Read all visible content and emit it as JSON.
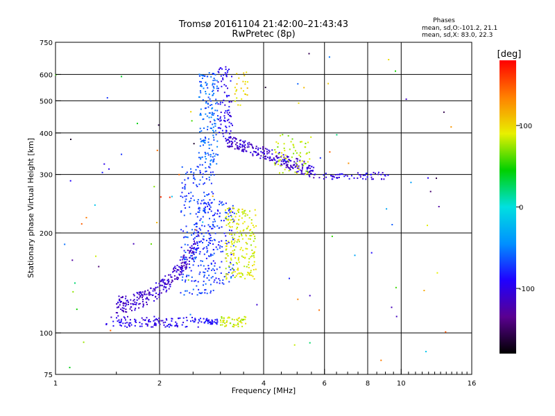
{
  "chart_data": {
    "type": "scatter",
    "title": "Tromsø 20161104 21:42:00–21:43:43",
    "subtitle": "RwPretec (8p)",
    "xlabel": "Frequency [MHz]",
    "ylabel": "Stationary phase Virtual Height [km]",
    "x_scale": "log",
    "y_scale": "log",
    "xlim": [
      1,
      16
    ],
    "ylim": [
      75,
      750
    ],
    "x_ticks": [
      1,
      2,
      4,
      6,
      8,
      10,
      16
    ],
    "x_tick_labels": [
      "1",
      "2",
      "4",
      "6",
      "8",
      "10",
      "16"
    ],
    "x_grid": [
      2,
      4,
      6,
      8,
      10
    ],
    "y_ticks": [
      75,
      100,
      200,
      300,
      400,
      500,
      600,
      750
    ],
    "y_tick_labels": [
      "75",
      "100",
      "200",
      "300",
      "400",
      "500",
      "600",
      "750"
    ],
    "y_grid": [
      100,
      200,
      300,
      400,
      500,
      600
    ],
    "grid": true,
    "stats": {
      "heading": "Phases",
      "line1": "mean, sd,O:-101.2, 21.1",
      "line2": "mean, sd,X: 83.0, 22.3"
    },
    "colorbar": {
      "label": "[deg]",
      "min": -180,
      "max": 180,
      "ticks": [
        100,
        0,
        -100
      ],
      "tick_labels": [
        "100",
        "0",
        "-100"
      ],
      "stops": [
        "#000000",
        "#5a0090",
        "#2000ff",
        "#0090ff",
        "#00e0e0",
        "#00d000",
        "#e8f000",
        "#ff8000",
        "#ff0000"
      ]
    },
    "clusters": [
      {
        "name": "o_low_100",
        "color_deg": -100,
        "n": 80,
        "f": [
          1.4,
          2.1
        ],
        "h": [
          104,
          112
        ]
      },
      {
        "name": "o_low_100b",
        "color_deg": -90,
        "n": 50,
        "f": [
          2.1,
          2.75
        ],
        "h": [
          104,
          112
        ]
      },
      {
        "name": "o_low_100c",
        "color_deg": -90,
        "n": 25,
        "f": [
          2.75,
          2.95
        ],
        "h": [
          106,
          110
        ]
      },
      {
        "name": "o_f1_trace",
        "color_deg": -110,
        "n": 260,
        "f": [
          1.5,
          2.6
        ],
        "h": [
          122,
          190
        ],
        "kind": "f1"
      },
      {
        "name": "o_f_rise",
        "color_deg": -70,
        "n": 230,
        "f": [
          2.3,
          2.9
        ],
        "h": [
          130,
          320
        ]
      },
      {
        "name": "o_f_high",
        "color_deg": -60,
        "n": 170,
        "f": [
          2.6,
          2.95
        ],
        "h": [
          320,
          610
        ]
      },
      {
        "name": "o_f_mid",
        "color_deg": -75,
        "n": 170,
        "f": [
          2.5,
          3.3
        ],
        "h": [
          140,
          250
        ]
      },
      {
        "name": "o_f_cusp",
        "color_deg": -95,
        "n": 90,
        "f": [
          2.95,
          3.25
        ],
        "h": [
          380,
          640
        ]
      },
      {
        "name": "o_f2_shelf",
        "color_deg": -110,
        "n": 240,
        "f": [
          3.1,
          5.6
        ],
        "h": [
          290,
          390
        ],
        "kind": "f2"
      },
      {
        "name": "o_f2_tail",
        "color_deg": -100,
        "n": 60,
        "f": [
          5.6,
          9.2
        ],
        "h": [
          290,
          305
        ]
      },
      {
        "name": "x_low_100",
        "color_deg": 85,
        "n": 50,
        "f": [
          3.0,
          3.55
        ],
        "h": [
          104,
          112
        ]
      },
      {
        "name": "x_f_band",
        "color_deg": 88,
        "n": 200,
        "f": [
          3.1,
          3.8
        ],
        "h": [
          145,
          240
        ]
      },
      {
        "name": "x_f2",
        "color_deg": 80,
        "n": 70,
        "f": [
          4.3,
          5.5
        ],
        "h": [
          300,
          400
        ]
      },
      {
        "name": "x_cusp",
        "color_deg": 100,
        "n": 25,
        "f": [
          3.3,
          3.6
        ],
        "h": [
          480,
          620
        ]
      },
      {
        "name": "scatter_noise",
        "color_deg": 0,
        "n": 90,
        "f": [
          1.0,
          14.0
        ],
        "h": [
          78,
          700
        ],
        "kind": "noise"
      }
    ]
  }
}
